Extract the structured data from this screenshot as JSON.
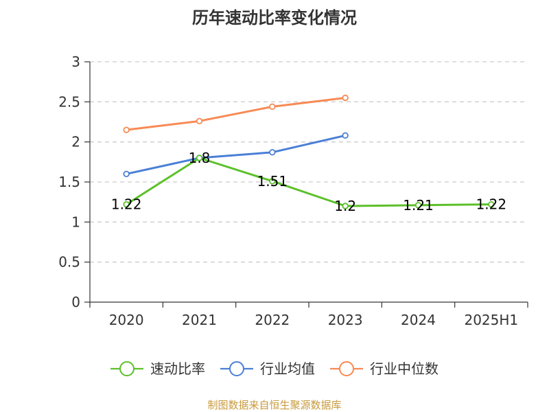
{
  "chart_data": {
    "type": "line",
    "title": "历年速动比率变化情况",
    "categories": [
      "2020",
      "2021",
      "2022",
      "2023",
      "2024",
      "2025H1"
    ],
    "ylim": [
      0,
      3
    ],
    "yticks": [
      "0",
      "0.5",
      "1",
      "1.5",
      "2",
      "2.5",
      "3"
    ],
    "grid": true,
    "legend_position": "bottom",
    "series": [
      {
        "name": "速动比率",
        "color": "#5cc02a",
        "values": [
          1.22,
          1.8,
          1.51,
          1.2,
          1.21,
          1.22
        ],
        "labels": [
          "1.22",
          "1.8",
          "1.51",
          "1.2",
          "1.21",
          "1.22"
        ]
      },
      {
        "name": "行业均值",
        "color": "#4a7fd6",
        "values": [
          1.6,
          1.8,
          1.87,
          2.08,
          null,
          null
        ]
      },
      {
        "name": "行业中位数",
        "color": "#f78a54",
        "values": [
          2.15,
          2.26,
          2.44,
          2.55,
          null,
          null
        ]
      }
    ]
  },
  "footer": {
    "source": "制图数据来自恒生聚源数据库"
  }
}
